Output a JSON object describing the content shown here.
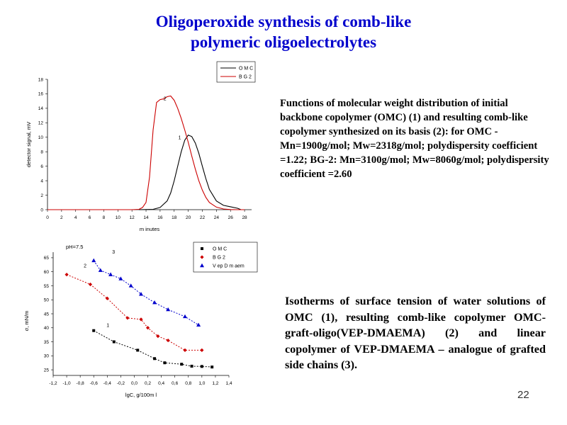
{
  "slide": {
    "title_line1": "Oligoperoxide synthesis  of comb-like",
    "title_line2": "polymeric oligoelectrolytes",
    "description1": "Functions of molecular weight distribution of initial backbone copolymer (OMC) (1) and resulting comb-like copolymer synthesized on its basis  (2): for OMC - Mn=1900g/mol; Mw=2318g/mol; polydispersity coefficient =1.22; BG-2: Mn=3100g/mol; Mw=8060g/mol; polydispersity coefficient =2.60",
    "description2": "Isotherms  of surface tension  of water solutions  of OMC (1), resulting  comb-like copolymer  OMC-graft-oligo(VEP-DMAEMA)  (2) and  linear  copolymer  of VEP-DMAEMA  – analogue  of grafted side chains  (3).",
    "page_number": "22"
  },
  "chart_data": [
    {
      "type": "line",
      "xlabel": "m inutes",
      "ylabel": "detector signal, mV",
      "xlim": [
        0,
        29
      ],
      "ylim": [
        0,
        18
      ],
      "xticks": [
        0,
        2,
        4,
        6,
        8,
        10,
        12,
        14,
        16,
        18,
        20,
        22,
        24,
        26,
        28
      ],
      "yticks": [
        0,
        2,
        4,
        6,
        8,
        10,
        12,
        14,
        16,
        18
      ],
      "legend_position": "top-right",
      "series": [
        {
          "name": "O M C",
          "label": "1",
          "color": "#000000",
          "x": [
            13,
            15,
            16,
            17,
            17.5,
            18,
            18.5,
            19,
            19.5,
            20,
            20.5,
            21,
            21.5,
            22,
            22.5,
            23,
            24,
            25,
            26,
            27,
            27.5
          ],
          "y": [
            0,
            0.05,
            0.3,
            1.2,
            2.3,
            4.0,
            6.0,
            8.0,
            9.6,
            10.3,
            10.1,
            9.2,
            7.8,
            6.0,
            4.3,
            2.8,
            1.2,
            0.6,
            0.4,
            0.2,
            0
          ]
        },
        {
          "name": "B G 2",
          "label": "2",
          "color": "#cc0000",
          "x": [
            0,
            12,
            13,
            13.5,
            14,
            14.5,
            15,
            15.5,
            16,
            16.5,
            17,
            17.5,
            18,
            18.5,
            19,
            19.5,
            20,
            20.5,
            21,
            21.5,
            22,
            22.5,
            23,
            24,
            25,
            26,
            27,
            28
          ],
          "y": [
            0,
            0,
            0.05,
            0.3,
            1.0,
            4.5,
            11.0,
            14.8,
            15.2,
            15.3,
            15.6,
            15.7,
            15.1,
            14.0,
            12.6,
            11.0,
            9.3,
            7.4,
            5.6,
            4.0,
            2.7,
            1.7,
            1.0,
            0.35,
            0.1,
            0.02,
            0,
            0
          ]
        }
      ]
    },
    {
      "type": "scatter",
      "xlabel": "lgC, g/100m l",
      "ylabel": "σ, mN/m",
      "annotation": "pH=7.5",
      "xlim": [
        -1.2,
        1.4
      ],
      "ylim": [
        23,
        67
      ],
      "xticks": [
        "-1,2",
        "-1,0",
        "-0,8",
        "-0,6",
        "-0,4",
        "-0,2",
        "0,0",
        "0,2",
        "0,4",
        "0,6",
        "0,8",
        "1,0",
        "1,2",
        "1,4"
      ],
      "yticks": [
        25,
        30,
        35,
        40,
        45,
        50,
        55,
        60,
        65
      ],
      "legend_position": "top-right",
      "series": [
        {
          "name": "O M C",
          "label": "1",
          "color": "#000000",
          "marker": "square",
          "x": [
            -0.6,
            -0.3,
            0.05,
            0.3,
            0.45,
            0.7,
            0.85,
            1.0,
            1.15
          ],
          "y": [
            39.0,
            35.0,
            32.0,
            29.0,
            27.5,
            27.0,
            26.3,
            26.2,
            26.0
          ]
        },
        {
          "name": "B G 2",
          "label": "2",
          "color": "#cc0000",
          "marker": "diamond",
          "x": [
            -1.0,
            -0.65,
            -0.4,
            -0.1,
            0.1,
            0.2,
            0.35,
            0.5,
            0.75,
            1.0
          ],
          "y": [
            59.0,
            55.5,
            50.5,
            43.5,
            43.0,
            40.0,
            37.0,
            35.5,
            32.0,
            32.0
          ]
        },
        {
          "name": "V ep D m aem",
          "label": "3",
          "color": "#0000cc",
          "marker": "triangle",
          "x": [
            -0.6,
            -0.5,
            -0.35,
            -0.2,
            -0.05,
            0.1,
            0.3,
            0.5,
            0.75,
            0.95
          ],
          "y": [
            64.0,
            60.5,
            59.0,
            57.5,
            55.0,
            52.0,
            49.0,
            46.5,
            44.0,
            41.0
          ]
        }
      ]
    }
  ]
}
